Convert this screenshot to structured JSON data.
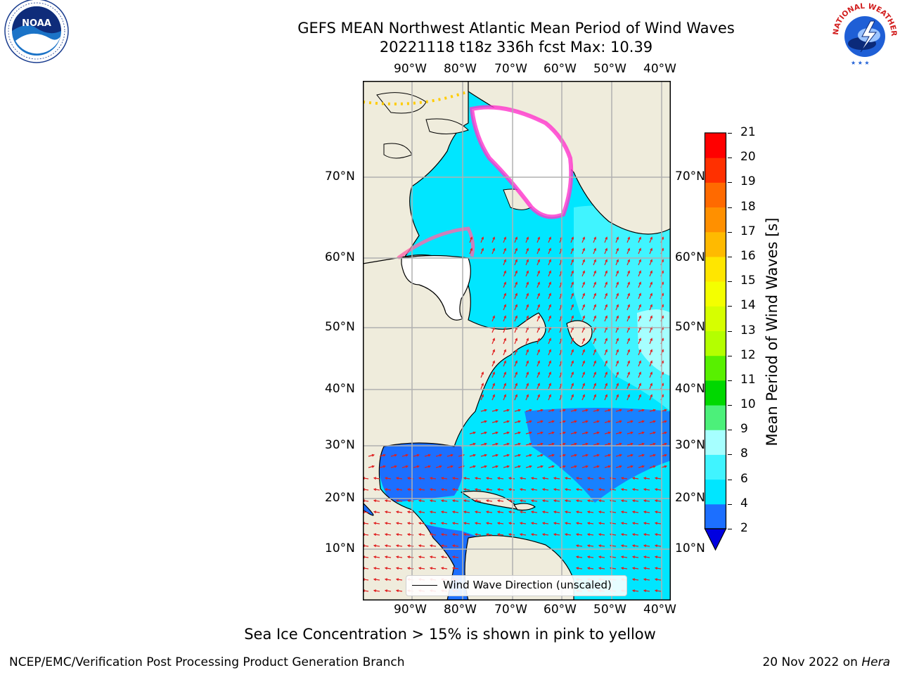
{
  "title": {
    "line1": "GEFS MEAN Northwest Atlantic Mean Period of Wind Waves",
    "line2": "20221118 t18z 336h fcst   Max: 10.39"
  },
  "map": {
    "lon_labels": [
      "90°W",
      "80°W",
      "70°W",
      "60°W",
      "50°W",
      "40°W"
    ],
    "lat_labels_left": [
      "70°N",
      "60°N",
      "50°N",
      "40°N",
      "30°N",
      "20°N",
      "10°N"
    ],
    "lat_labels_right": [
      "70°N",
      "60°N",
      "50°N",
      "40°N",
      "30°N",
      "20°N",
      "10°N"
    ],
    "colors": {
      "land": "#efecdc",
      "ice": "#ffffff",
      "grid": "#b0b0b0",
      "vector": "#e02020"
    }
  },
  "legend": {
    "label": "Wind Wave Direction (unscaled)"
  },
  "colorbar": {
    "label": "Mean Period of Wind Waves [s]",
    "ticks": [
      "2",
      "4",
      "6",
      "8",
      "9",
      "10",
      "11",
      "12",
      "13",
      "14",
      "15",
      "16",
      "17",
      "18",
      "19",
      "20",
      "21"
    ],
    "colors": [
      "#1c6fff",
      "#00e6ff",
      "#40f4ff",
      "#a6ffff",
      "#4cf07a",
      "#00d800",
      "#58f000",
      "#b4ff00",
      "#d6ff00",
      "#f4ff00",
      "#ffe600",
      "#ffba00",
      "#ff9000",
      "#ff6a00",
      "#ff3000",
      "#ff0000"
    ],
    "under_color": "#0000e0"
  },
  "caption": "Sea Ice Concentration > 15% is shown in pink to yellow",
  "credit": "NCEP/EMC/Verification Post Processing Product Generation Branch",
  "date": {
    "text": "20 Nov 2022 on ",
    "machine": "Hera"
  },
  "logos": {
    "left": "NOAA",
    "right": "NATIONAL WEATHER SERVICE"
  }
}
